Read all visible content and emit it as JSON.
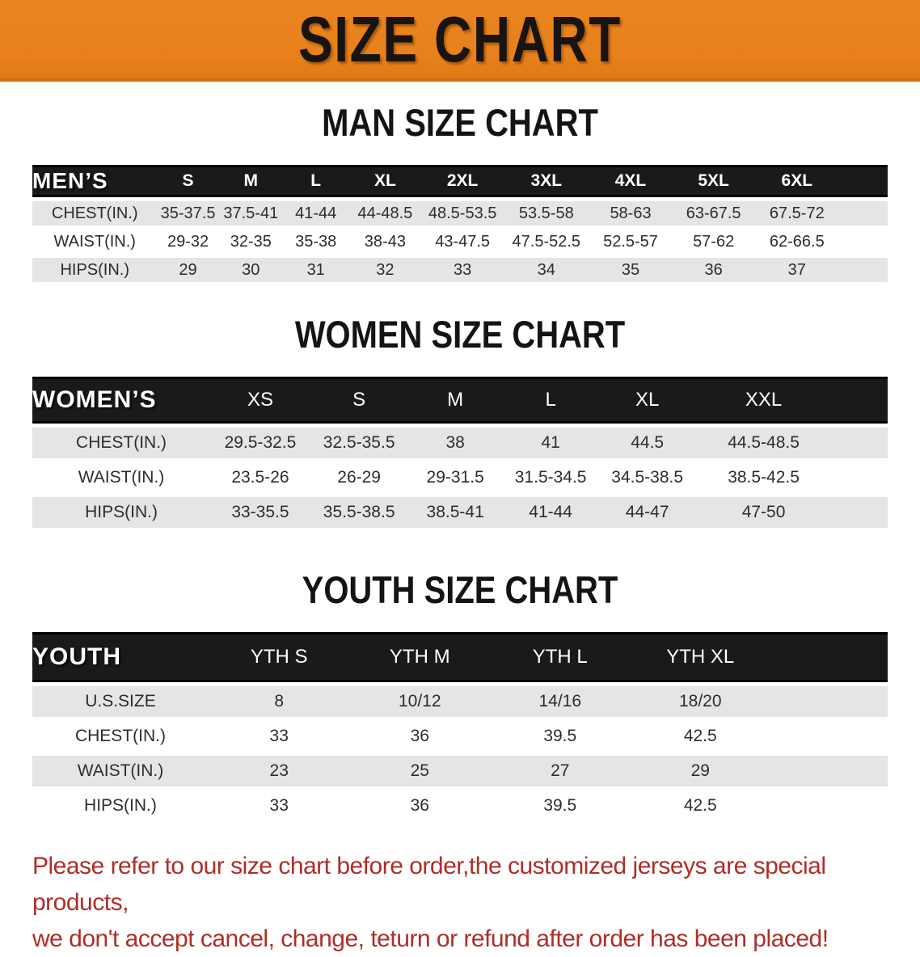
{
  "banner": {
    "title": "SIZE CHART"
  },
  "men": {
    "heading": "MAN SIZE CHART",
    "label": "MEN’S",
    "sizes": [
      "S",
      "M",
      "L",
      "XL",
      "2XL",
      "3XL",
      "4XL",
      "5XL",
      "6XL"
    ],
    "rows": [
      {
        "label": "CHEST(IN.)",
        "values": [
          "35-37.5",
          "37.5-41",
          "41-44",
          "44-48.5",
          "48.5-53.5",
          "53.5-58",
          "58-63",
          "63-67.5",
          "67.5-72"
        ]
      },
      {
        "label": "WAIST(IN.)",
        "values": [
          "29-32",
          "32-35",
          "35-38",
          "38-43",
          "43-47.5",
          "47.5-52.5",
          "52.5-57",
          "57-62",
          "62-66.5"
        ]
      },
      {
        "label": "HIPS(IN.)",
        "values": [
          "29",
          "30",
          "31",
          "32",
          "33",
          "34",
          "35",
          "36",
          "37"
        ]
      }
    ]
  },
  "women": {
    "heading": "WOMEN SIZE CHART",
    "label": "WOMEN’S",
    "sizes": [
      "XS",
      "S",
      "M",
      "L",
      "XL",
      "XXL"
    ],
    "rows": [
      {
        "label": "CHEST(IN.)",
        "values": [
          "29.5-32.5",
          "32.5-35.5",
          "38",
          "41",
          "44.5",
          "44.5-48.5"
        ]
      },
      {
        "label": "WAIST(IN.)",
        "values": [
          "23.5-26",
          "26-29",
          "29-31.5",
          "31.5-34.5",
          "34.5-38.5",
          "38.5-42.5"
        ]
      },
      {
        "label": "HIPS(IN.)",
        "values": [
          "33-35.5",
          "35.5-38.5",
          "38.5-41",
          "41-44",
          "44-47",
          "47-50"
        ]
      }
    ]
  },
  "youth": {
    "heading": "YOUTH SIZE CHART",
    "label": "YOUTH",
    "sizes": [
      "YTH S",
      "YTH M",
      "YTH L",
      "YTH XL"
    ],
    "rows": [
      {
        "label": "U.S.SIZE",
        "values": [
          "8",
          "10/12",
          "14/16",
          "18/20"
        ]
      },
      {
        "label": "CHEST(IN.)",
        "values": [
          "33",
          "36",
          "39.5",
          "42.5"
        ]
      },
      {
        "label": "WAIST(IN.)",
        "values": [
          "23",
          "25",
          "27",
          "29"
        ]
      },
      {
        "label": "HIPS(IN.)",
        "values": [
          "33",
          "36",
          "39.5",
          "42.5"
        ]
      }
    ]
  },
  "disclaimer": {
    "line1": "Please refer to our size chart before order,the customized jerseys are special products,",
    "line2": "we don't accept cancel, change, teturn or refund after order has been placed!"
  },
  "colors": {
    "banner_orange": "#E8811C",
    "banner_border": "#CF7013",
    "table_header_black": "#1A1A1A",
    "row_gray": "#E5E5E5",
    "disclaimer_red": "#AE2E28"
  }
}
